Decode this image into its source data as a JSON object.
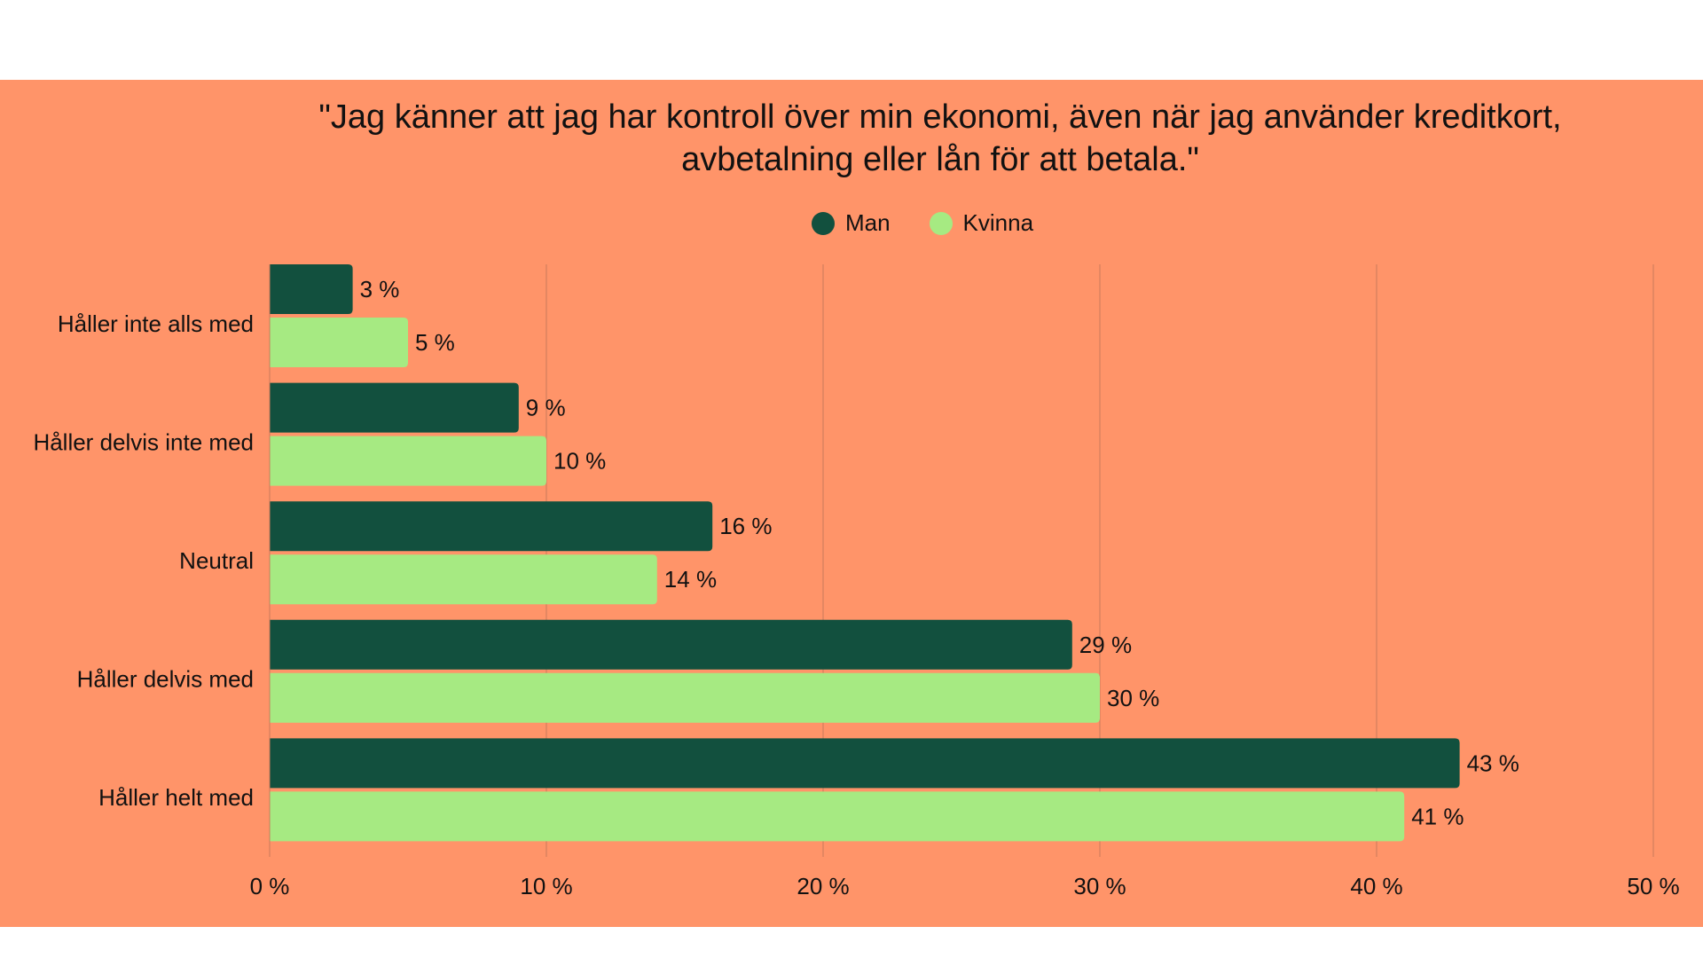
{
  "colors": {
    "background": "#FF9469",
    "man": "#12503E",
    "kvinna": "#A6EA82",
    "gridline": "#C87A5C",
    "text": "#111111"
  },
  "chart_data": {
    "type": "bar",
    "orientation": "horizontal",
    "title": "\"Jag känner att jag har kontroll över min ekonomi, även när jag använder kreditkort, avbetalning eller lån för att betala.\"",
    "title_lines": [
      "\"Jag känner att jag har kontroll över min ekonomi, även när jag använder kreditkort,",
      "avbetalning eller lån för att betala.\""
    ],
    "categories": [
      "Håller inte alls med",
      "Håller delvis inte med",
      "Neutral",
      "Håller delvis med",
      "Håller helt med"
    ],
    "series": [
      {
        "name": "Man",
        "values": [
          3,
          9,
          16,
          29,
          43
        ],
        "labels": [
          "3 %",
          "9 %",
          "16 %",
          "29 %",
          "43 %"
        ]
      },
      {
        "name": "Kvinna",
        "values": [
          5,
          10,
          14,
          30,
          41
        ],
        "labels": [
          "5 %",
          "10 %",
          "14 %",
          "30 %",
          "41 %"
        ]
      }
    ],
    "xlim": [
      0,
      50
    ],
    "x_ticks": [
      0,
      10,
      20,
      30,
      40,
      50
    ],
    "x_tick_labels": [
      "0 %",
      "10 %",
      "20 %",
      "30 %",
      "40 %",
      "50 %"
    ],
    "xlabel": "",
    "ylabel": "",
    "grid": "vertical",
    "legend_position": "top-center"
  }
}
